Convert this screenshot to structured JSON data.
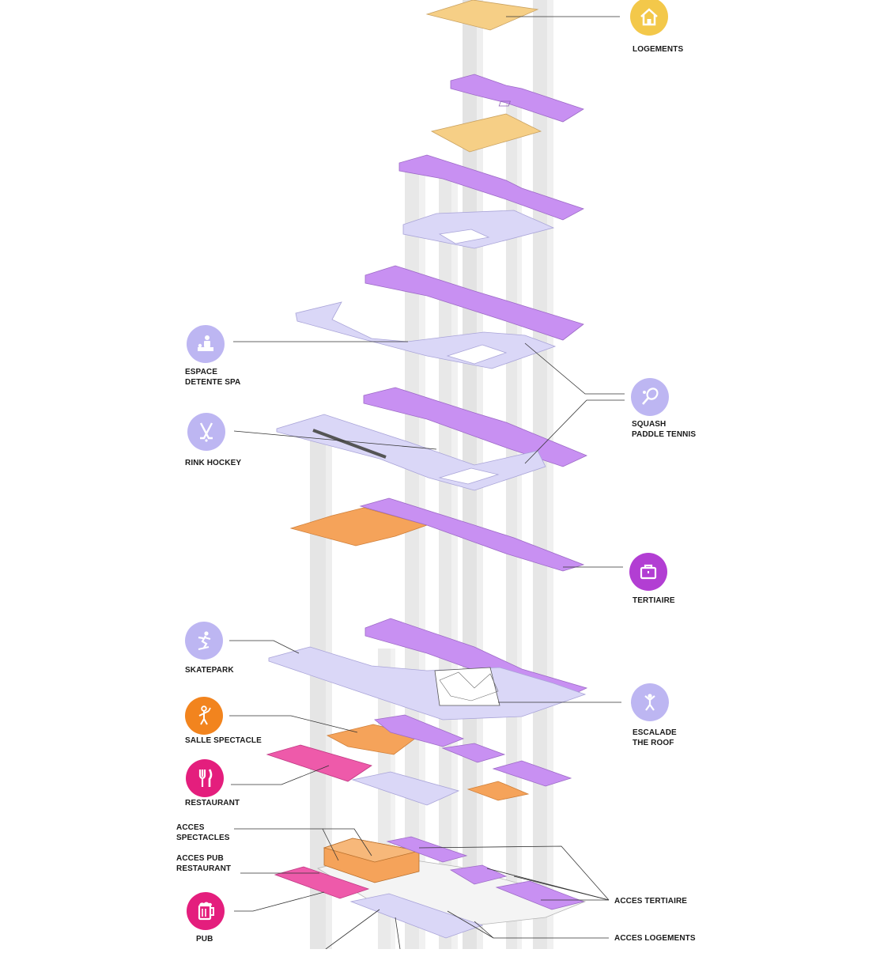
{
  "diagram": {
    "type": "exploded-axonometric-program",
    "colors": {
      "residential": "#f6cf86",
      "tertiary": "#c88ef0",
      "sport": "#d9d6f7",
      "show": "#f5a35a",
      "food": "#ee4fa4",
      "core": "#e2e2e2"
    },
    "labels": {
      "logements": {
        "lines": [
          "LOGEMENTS"
        ],
        "icon": "house-icon",
        "color": "#f3c84a"
      },
      "squash": {
        "lines": [
          "SQUASH",
          "PADDLE TENNIS"
        ],
        "icon": "racket-icon",
        "color": "#bdb6f2"
      },
      "spa": {
        "lines": [
          "ESPACE",
          "DETENTE SPA"
        ],
        "icon": "massage-icon",
        "color": "#bdb6f2"
      },
      "rink": {
        "lines": [
          "RINK HOCKEY"
        ],
        "icon": "hockey-sticks-icon",
        "color": "#bdb6f2"
      },
      "tertiaire": {
        "lines": [
          "TERTIAIRE"
        ],
        "icon": "briefcase-icon",
        "color": "#b23ed3"
      },
      "skatepark": {
        "lines": [
          "SKATEPARK"
        ],
        "icon": "skater-icon",
        "color": "#bdb6f2"
      },
      "escalade": {
        "lines": [
          "ESCALADE",
          "THE ROOF"
        ],
        "icon": "climber-icon",
        "color": "#bdb6f2"
      },
      "spectacle": {
        "lines": [
          "SALLE SPECTACLE"
        ],
        "icon": "performer-icon",
        "color": "#f2841e"
      },
      "restaurant": {
        "lines": [
          "RESTAURANT"
        ],
        "icon": "fork-knife-icon",
        "color": "#e41e7d"
      },
      "pub": {
        "lines": [
          "PUB"
        ],
        "icon": "beer-mug-icon",
        "color": "#e41e7d"
      },
      "acces_spectacles": {
        "lines": [
          "ACCES",
          "SPECTACLES"
        ]
      },
      "acces_pub": {
        "lines": [
          "ACCES PUB",
          "RESTAURANT"
        ]
      },
      "acces_tertiaire": {
        "lines": [
          "ACCES TERTIAIRE"
        ]
      },
      "acces_logements": {
        "lines": [
          "ACCES LOGEMENTS"
        ]
      }
    }
  }
}
